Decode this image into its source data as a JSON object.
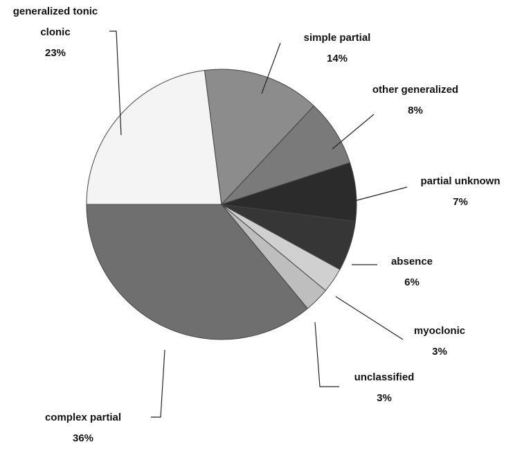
{
  "chart_data": {
    "type": "pie",
    "categories": [
      "generalized tonic clonic",
      "simple partial",
      "other generalized",
      "partial unknown",
      "absence",
      "myoclonic",
      "unclassified",
      "complex partial"
    ],
    "values": [
      23,
      14,
      8,
      7,
      6,
      3,
      3,
      36
    ],
    "value_labels": [
      "23%",
      "14%",
      "8%",
      "7%",
      "6%",
      "3%",
      "3%",
      "36%"
    ],
    "colors": [
      "#f4f4f4",
      "#8c8c8c",
      "#7a7a7a",
      "#2b2b2b",
      "#363636",
      "#d0d0d0",
      "#bebebe",
      "#6f6f6f"
    ]
  }
}
